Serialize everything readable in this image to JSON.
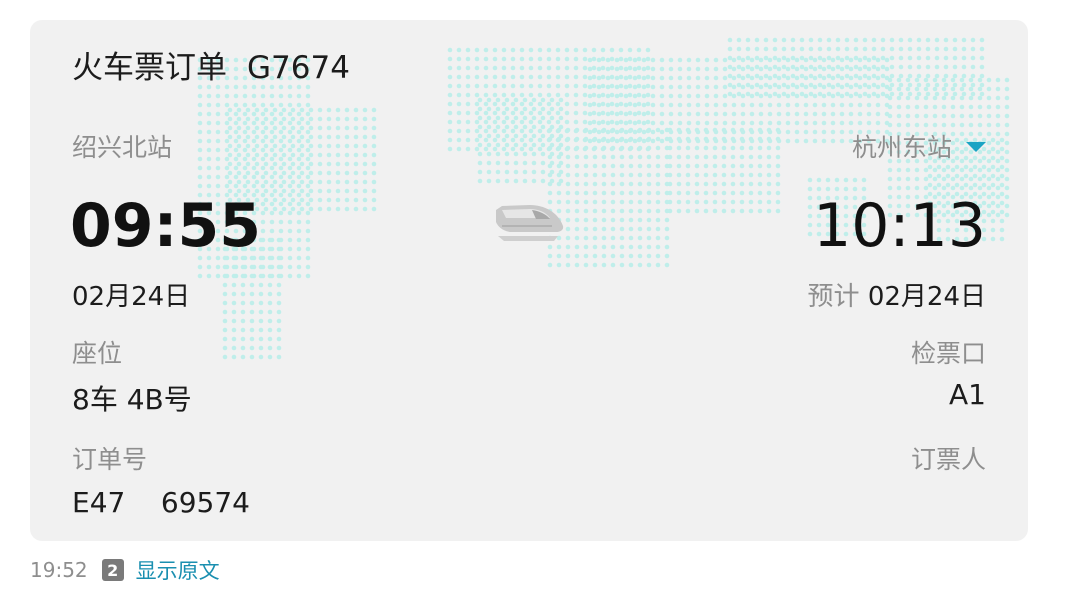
{
  "ticket": {
    "title": "火车票订单",
    "train_number": "G7674",
    "departure": {
      "station": "绍兴北站",
      "time": "09:55",
      "date": "02月24日"
    },
    "arrival": {
      "station": "杭州东站",
      "time": "10:13",
      "date_prefix": "预计",
      "date": "02月24日"
    },
    "seat": {
      "label": "座位",
      "value": "8车 4B号"
    },
    "gate": {
      "label": "检票口",
      "value": "A1"
    },
    "order": {
      "label": "订单号",
      "value": "E47    69574"
    },
    "booker": {
      "label": "订票人",
      "value": ""
    },
    "colors": {
      "card_bg": "#f1f1f1",
      "map_dots": "#bfeeea",
      "accent": "#1aa4c4",
      "link": "#1a8fb0"
    },
    "icons": {
      "dropdown": "triangle-down-icon",
      "train": "high-speed-train-icon"
    }
  },
  "footer": {
    "time": "19:52",
    "badge": "2",
    "link_label": "显示原文"
  }
}
